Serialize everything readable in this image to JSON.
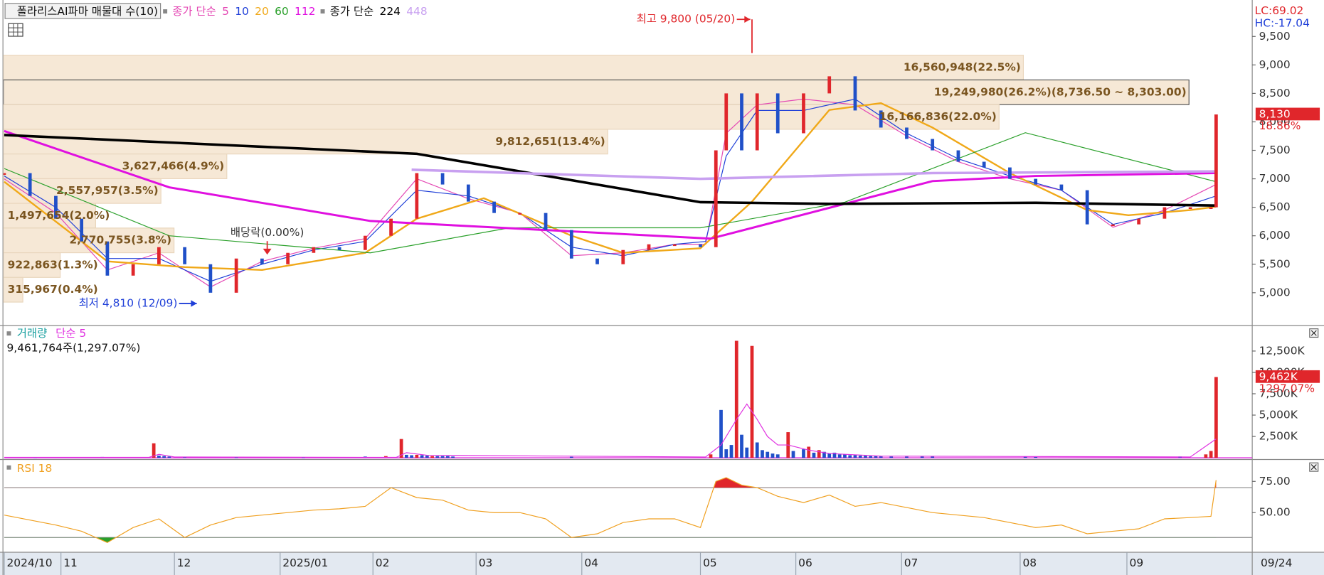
{
  "chart_data": [
    {
      "type": "candlestick",
      "title": "폴라리스AI파마 매물대 수(10)",
      "legend_prefix": "종가 단순",
      "lc": "LC:69.02",
      "hc": "HC:-17.04",
      "x": [
        0,
        5,
        10,
        15,
        20,
        25,
        30,
        35,
        40,
        45,
        50,
        55,
        60,
        65,
        70,
        75,
        80,
        85,
        90,
        95,
        100,
        105,
        110,
        115,
        120,
        125,
        130,
        135,
        138,
        140,
        143,
        146,
        150,
        155,
        160,
        165,
        170,
        175,
        180,
        185,
        190,
        195,
        200,
        205,
        210,
        215,
        220,
        225,
        230,
        234,
        235
      ],
      "values": [
        7100,
        6700,
        6300,
        5900,
        5300,
        5500,
        5800,
        5500,
        5000,
        5600,
        5500,
        5700,
        5800,
        5750,
        6000,
        6300,
        7100,
        6900,
        6600,
        6400,
        6400,
        6100,
        5600,
        5500,
        5750,
        5850,
        5850,
        5800,
        7500,
        8500,
        7500,
        8500,
        7800,
        8500,
        8800,
        8200,
        7900,
        7700,
        7500,
        7300,
        7200,
        7000,
        6900,
        6800,
        6200,
        6200,
        6300,
        6500,
        6500,
        6500,
        8130
      ],
      "up_color": "#e0262b",
      "down_color": "#2050c8",
      "series": [
        {
          "name": "5",
          "color": "#e448b4",
          "x": [
            0,
            10,
            20,
            30,
            40,
            50,
            60,
            70,
            80,
            90,
            100,
            110,
            120,
            130,
            136,
            140,
            146,
            155,
            165,
            175,
            185,
            195,
            205,
            215,
            225,
            235
          ],
          "values": [
            7000,
            6400,
            5400,
            5700,
            5100,
            5550,
            5780,
            5950,
            7000,
            6650,
            6400,
            5650,
            5700,
            5850,
            5850,
            7800,
            8300,
            8400,
            8300,
            7750,
            7300,
            7000,
            6800,
            6150,
            6450,
            6900
          ]
        },
        {
          "name": "10",
          "color": "#1f3fd8",
          "x": [
            0,
            10,
            20,
            30,
            40,
            50,
            60,
            70,
            80,
            90,
            100,
            110,
            120,
            130,
            136,
            140,
            146,
            155,
            165,
            175,
            185,
            195,
            205,
            215,
            225,
            235
          ],
          "values": [
            7050,
            6500,
            5600,
            5600,
            5200,
            5500,
            5750,
            5900,
            6800,
            6700,
            6400,
            5800,
            5650,
            5850,
            5900,
            7400,
            8200,
            8200,
            8400,
            7800,
            7350,
            7050,
            6800,
            6200,
            6400,
            6700
          ]
        },
        {
          "name": "20",
          "color": "#f0a818",
          "x": [
            0,
            20,
            35,
            50,
            70,
            80,
            93,
            110,
            120,
            135,
            145,
            160,
            170,
            180,
            195,
            210,
            218,
            230,
            235
          ],
          "values": [
            6950,
            5550,
            5450,
            5400,
            5700,
            6300,
            6660,
            6000,
            5700,
            5780,
            6600,
            8210,
            8330,
            7900,
            7100,
            6450,
            6360,
            6450,
            6510
          ]
        },
        {
          "name": "60",
          "color": "#2aa02a",
          "x": [
            0,
            32,
            71,
            98,
            135,
            163,
            198,
            235
          ],
          "values": [
            7180,
            6000,
            5700,
            6140,
            6140,
            6590,
            7810,
            6950
          ]
        },
        {
          "name": "112",
          "color": "#e010e0",
          "x": [
            0,
            32,
            71,
            137,
            180,
            200,
            235
          ],
          "values": [
            7840,
            6850,
            6260,
            5950,
            6960,
            7050,
            7100
          ]
        },
        {
          "name": "224",
          "color": "#000000",
          "x": [
            0,
            80,
            100,
            135,
            160,
            200,
            235
          ],
          "values": [
            7770,
            7440,
            7130,
            6590,
            6560,
            6580,
            6530
          ]
        },
        {
          "name": "448",
          "color": "#c8a0f0",
          "x": [
            79,
            135,
            180,
            235
          ],
          "values": [
            7160,
            7000,
            7100,
            7130
          ]
        }
      ],
      "xlim": [
        0,
        242
      ],
      "ylim": [
        4440,
        10140
      ],
      "yticks": [
        {
          "value": 5000,
          "label": "5,000"
        },
        {
          "value": 5500,
          "label": "5,500"
        },
        {
          "value": 6000,
          "label": "6,000"
        },
        {
          "value": 6500,
          "label": "6,500"
        },
        {
          "value": 7000,
          "label": "7,000"
        },
        {
          "value": 7500,
          "label": "7,500"
        },
        {
          "value": 8000,
          "label": "8,000"
        },
        {
          "value": 8500,
          "label": "8,500"
        },
        {
          "value": 9000,
          "label": "9,000"
        },
        {
          "value": 9500,
          "label": "9,500"
        }
      ],
      "volume_profile": [
        {
          "label": "16,560,948(22.5%)",
          "volume": 16560948,
          "range": [
            8736.5,
            9170
          ]
        },
        {
          "label": "19,249,980(26.2%)(8,736.50 ~ 8,303.00)",
          "volume": 19249980,
          "range": [
            8303,
            8736.5
          ]
        },
        {
          "label": "16,166,836(22.0%)",
          "volume": 16166836,
          "range": [
            7869.5,
            8303
          ]
        },
        {
          "label": "9,812,651(13.4%)",
          "volume": 9812651,
          "range": [
            7436,
            7869.5
          ]
        },
        {
          "label": "3,627,466(4.9%)",
          "volume": 3627466,
          "range": [
            7002.5,
            7436
          ]
        },
        {
          "label": "2,557,957(3.5%)",
          "volume": 2557957,
          "range": [
            6569,
            7002.5
          ]
        },
        {
          "label": "1,497,654(2.0%)",
          "volume": 1497654,
          "range": [
            6135.5,
            6569
          ]
        },
        {
          "label": "2,770,755(3.8%)",
          "volume": 2770755,
          "range": [
            5702,
            6135.5
          ]
        },
        {
          "label": "922,863(1.3%)",
          "volume": 922863,
          "range": [
            5268.5,
            5702
          ]
        },
        {
          "label": "315,967(0.4%)",
          "volume": 315967,
          "range": [
            4835,
            5268.5
          ]
        }
      ],
      "high": {
        "text": "최고 9,800 (05/20)",
        "x": 145,
        "value": 9800
      },
      "low": {
        "text": "최저 4,810 (12/09)",
        "x": 38,
        "value": 4810
      },
      "event": {
        "text": "배당락(0.00%)",
        "x": 51
      },
      "last": {
        "value": 8130,
        "label": "8,130",
        "change": "18.86%"
      }
    },
    {
      "type": "bar",
      "title": "거래량",
      "info": "9,461,764주(1,297.07%)",
      "x": [
        6,
        19,
        29,
        30,
        31,
        32,
        35,
        45,
        58,
        70,
        74,
        77,
        78,
        79,
        80,
        81,
        82,
        83,
        84,
        85,
        86,
        87,
        110,
        137,
        139,
        140,
        141,
        142,
        143,
        144,
        145,
        146,
        147,
        148,
        149,
        150,
        152,
        153,
        155,
        156,
        157,
        158,
        159,
        160,
        161,
        162,
        163,
        164,
        165,
        166,
        167,
        168,
        169,
        170,
        172,
        175,
        178,
        180,
        198,
        200,
        228,
        233,
        234,
        235
      ],
      "values": [
        80,
        100,
        1700,
        250,
        200,
        150,
        100,
        80,
        80,
        150,
        200,
        2200,
        350,
        300,
        350,
        300,
        250,
        200,
        200,
        200,
        200,
        150,
        120,
        400,
        5600,
        1000,
        1500,
        13700,
        2700,
        1200,
        13100,
        1800,
        900,
        700,
        500,
        400,
        3000,
        800,
        1000,
        1300,
        600,
        900,
        700,
        500,
        600,
        400,
        400,
        300,
        300,
        250,
        250,
        200,
        200,
        200,
        150,
        150,
        150,
        150,
        150,
        100,
        150,
        400,
        800,
        9462
      ],
      "colors": [
        "#2050c8",
        "#2050c8",
        "#e0262b",
        "#2050c8",
        "#2050c8",
        "#2050c8",
        "#2050c8",
        "#2050c8",
        "#2050c8",
        "#2050c8",
        "#e0262b",
        "#e0262b",
        "#2050c8",
        "#2050c8",
        "#e0262b",
        "#2050c8",
        "#2050c8",
        "#e0262b",
        "#2050c8",
        "#2050c8",
        "#2050c8",
        "#2050c8",
        "#2050c8",
        "#e0262b",
        "#2050c8",
        "#2050c8",
        "#2050c8",
        "#e0262b",
        "#2050c8",
        "#2050c8",
        "#e0262b",
        "#2050c8",
        "#2050c8",
        "#2050c8",
        "#2050c8",
        "#2050c8",
        "#e0262b",
        "#2050c8",
        "#2050c8",
        "#e0262b",
        "#2050c8",
        "#e0262b",
        "#2050c8",
        "#2050c8",
        "#2050c8",
        "#2050c8",
        "#2050c8",
        "#2050c8",
        "#2050c8",
        "#2050c8",
        "#2050c8",
        "#2050c8",
        "#2050c8",
        "#2050c8",
        "#2050c8",
        "#2050c8",
        "#2050c8",
        "#2050c8",
        "#2050c8",
        "#2050c8",
        "#2050c8",
        "#e0262b",
        "#e0262b",
        "#e0262b"
      ],
      "series": [
        {
          "name": "단순 5",
          "color": "#e030e0",
          "x": [
            0,
            28,
            30,
            33,
            76,
            78,
            82,
            136,
            139,
            142,
            144,
            146,
            148,
            150,
            152,
            156,
            160,
            170,
            230,
            235
          ],
          "values": [
            50,
            50,
            400,
            100,
            50,
            600,
            300,
            100,
            1500,
            4500,
            6300,
            4500,
            2500,
            1500,
            1500,
            900,
            500,
            200,
            100,
            2200
          ]
        }
      ],
      "xlim": [
        0,
        242
      ],
      "ylim": [
        0,
        15300
      ],
      "yticks": [
        {
          "value": 2500,
          "label": "2,500K"
        },
        {
          "value": 5000,
          "label": "5,000K"
        },
        {
          "value": 7500,
          "label": "7,500K"
        },
        {
          "value": 10000,
          "label": "10,000K"
        },
        {
          "value": 12500,
          "label": "12,500K"
        }
      ],
      "last": {
        "value": 9462,
        "label": "9,462K",
        "change": "1297.07%"
      }
    },
    {
      "type": "line",
      "title": "RSI 18",
      "color": "#f0a020",
      "x": [
        0,
        5,
        10,
        15,
        20,
        25,
        30,
        35,
        40,
        45,
        50,
        55,
        60,
        65,
        70,
        75,
        80,
        85,
        90,
        95,
        100,
        105,
        110,
        115,
        120,
        125,
        130,
        135,
        138,
        140,
        143,
        146,
        150,
        155,
        160,
        165,
        170,
        175,
        180,
        185,
        190,
        195,
        200,
        205,
        210,
        215,
        220,
        225,
        230,
        234,
        235
      ],
      "values": [
        48,
        44,
        40,
        35,
        26,
        38,
        45,
        30,
        40,
        46,
        48,
        50,
        52,
        53,
        55,
        70,
        62,
        60,
        52,
        50,
        50,
        45,
        30,
        33,
        42,
        45,
        45,
        38,
        75,
        78,
        72,
        70,
        63,
        58,
        64,
        55,
        58,
        54,
        50,
        48,
        46,
        42,
        38,
        40,
        33,
        35,
        37,
        45,
        46,
        47,
        76
      ],
      "levels": [
        70,
        30
      ],
      "xlim": [
        0,
        242
      ],
      "ylim": [
        18.2,
        91.2
      ],
      "yticks": [
        {
          "value": 50,
          "label": "50.00"
        },
        {
          "value": 75,
          "label": "75.00"
        }
      ],
      "xticks": [
        {
          "value": 0,
          "label": "2024/10"
        },
        {
          "value": 11,
          "label": "11"
        },
        {
          "value": 33,
          "label": "12"
        },
        {
          "value": 53.5,
          "label": "2025/01"
        },
        {
          "value": 71.5,
          "label": "02"
        },
        {
          "value": 91.5,
          "label": "03"
        },
        {
          "value": 112,
          "label": "04"
        },
        {
          "value": 135,
          "label": "05"
        },
        {
          "value": 153.5,
          "label": "06"
        },
        {
          "value": 174,
          "label": "07"
        },
        {
          "value": 197,
          "label": "08"
        },
        {
          "value": 217.7,
          "label": "09"
        }
      ],
      "date": "09/24"
    }
  ]
}
